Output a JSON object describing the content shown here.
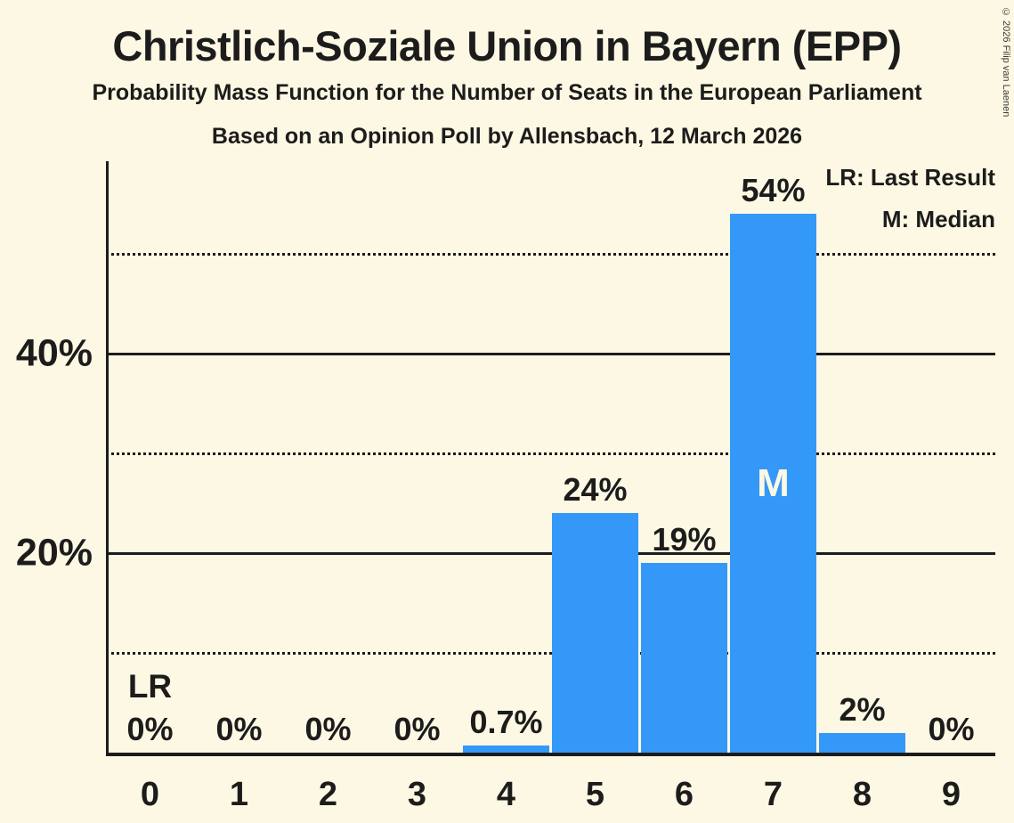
{
  "page": {
    "title": "Christlich-Soziale Union in Bayern (EPP)",
    "subtitle": "Probability Mass Function for the Number of Seats in the European Parliament",
    "poll_line": "Based on an Opinion Poll by Allensbach, 12 March 2026",
    "copyright": "© 2026 Filip van Laenen"
  },
  "legend": {
    "lr": "LR: Last Result",
    "m": "M: Median"
  },
  "colors": {
    "background": "#FDF8E3",
    "bar": "#3498F8",
    "text": "#1C1C1C"
  },
  "chart_data": {
    "type": "bar",
    "title": "Probability Mass Function for the Number of Seats in the European Parliament",
    "xlabel": "",
    "ylabel": "",
    "categories": [
      "0",
      "1",
      "2",
      "3",
      "4",
      "5",
      "6",
      "7",
      "8",
      "9"
    ],
    "values": [
      0,
      0,
      0,
      0,
      0.7,
      24,
      19,
      54,
      2,
      0
    ],
    "bar_labels": [
      "0%",
      "0%",
      "0%",
      "0%",
      "0.7%",
      "24%",
      "19%",
      "54%",
      "2%",
      "0%"
    ],
    "ylim": [
      0,
      59.5
    ],
    "yticks": [
      {
        "value": 20,
        "label": "20%"
      },
      {
        "value": 40,
        "label": "40%"
      }
    ],
    "gridlines": {
      "solid": [
        20,
        40
      ],
      "dotted": [
        10,
        30,
        50
      ]
    },
    "grid": "horizontal",
    "legend_position": "top-right",
    "annotations": {
      "last_result": {
        "seat": 0,
        "label": "LR"
      },
      "median": {
        "seat": 7,
        "label": "M"
      }
    }
  }
}
